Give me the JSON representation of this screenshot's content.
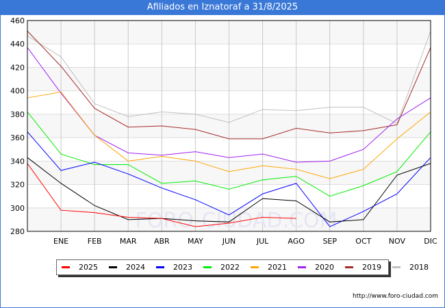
{
  "title": "Afiliados en Iznatoraf a 31/8/2025",
  "footer_url": "http://www.foro-ciudad.com",
  "chart_data": {
    "type": "line",
    "title": "Afiliados en Iznatoraf a 31/8/2025",
    "categories": [
      "",
      "ENE",
      "FEB",
      "MAR",
      "ABR",
      "MAY",
      "JUN",
      "JUL",
      "AGO",
      "SEP",
      "OCT",
      "NOV",
      "DIC"
    ],
    "yticks": [
      280,
      300,
      320,
      340,
      360,
      380,
      400,
      420,
      440,
      460
    ],
    "ylim": [
      280,
      460
    ],
    "grid": true,
    "legend_position": "bottom",
    "series": [
      {
        "name": "2025",
        "color": "#ff0000",
        "values": [
          338,
          298,
          296,
          292,
          291,
          284,
          287,
          292,
          291,
          null,
          null,
          null,
          null
        ]
      },
      {
        "name": "2024",
        "color": "#000000",
        "values": [
          343,
          321,
          302,
          290,
          291,
          289,
          288,
          308,
          306,
          288,
          290,
          328,
          338
        ]
      },
      {
        "name": "2023",
        "color": "#0000ff",
        "values": [
          365,
          332,
          339,
          329,
          317,
          307,
          294,
          312,
          321,
          284,
          297,
          312,
          343
        ]
      },
      {
        "name": "2022",
        "color": "#00ee00",
        "values": [
          382,
          346,
          337,
          337,
          321,
          323,
          316,
          324,
          327,
          310,
          319,
          331,
          365
        ]
      },
      {
        "name": "2021",
        "color": "#ffa500",
        "values": [
          394,
          399,
          362,
          340,
          344,
          340,
          331,
          336,
          333,
          325,
          333,
          359,
          382
        ]
      },
      {
        "name": "2020",
        "color": "#a020f0",
        "values": [
          437,
          398,
          362,
          347,
          345,
          348,
          343,
          346,
          339,
          340,
          350,
          376,
          394
        ]
      },
      {
        "name": "2019",
        "color": "#a52a2a",
        "values": [
          451,
          421,
          385,
          369,
          370,
          367,
          359,
          359,
          368,
          364,
          366,
          371,
          437
        ]
      },
      {
        "name": "2018",
        "color": "#c0c0c0",
        "values": [
          447,
          429,
          389,
          378,
          382,
          380,
          373,
          384,
          383,
          386,
          386,
          372,
          451
        ]
      }
    ]
  }
}
